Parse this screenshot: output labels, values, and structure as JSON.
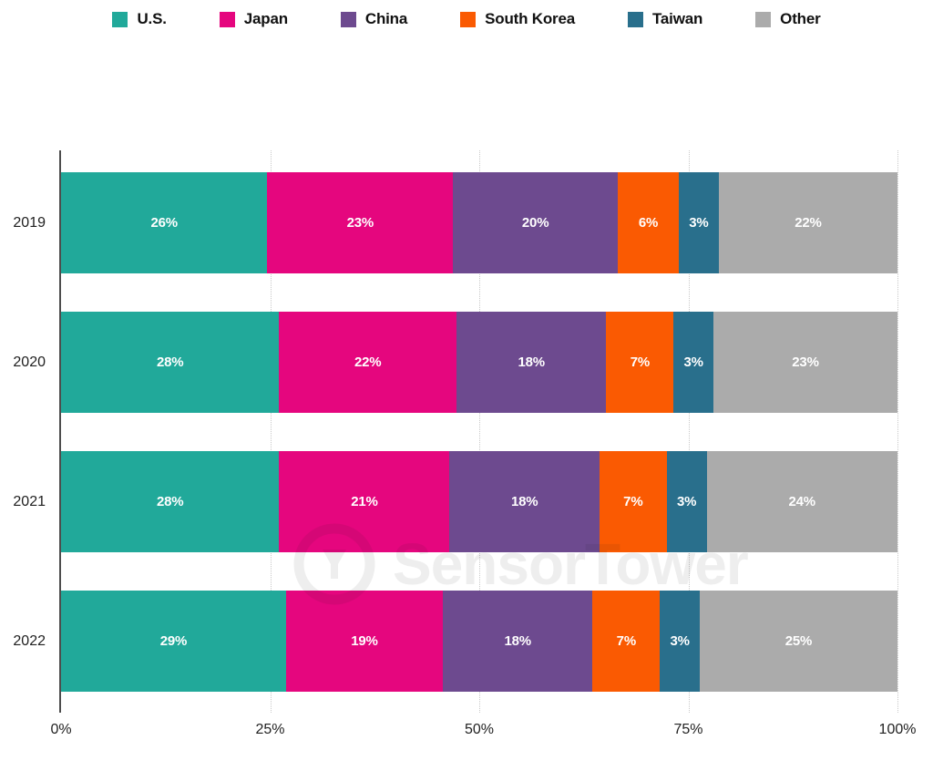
{
  "chart_data": {
    "type": "bar",
    "orientation": "horizontal-stacked",
    "title": "",
    "categories": [
      "2019",
      "2020",
      "2021",
      "2022"
    ],
    "series": [
      {
        "name": "U.S.",
        "color": "#21a99a",
        "values": [
          26,
          28,
          28,
          29
        ]
      },
      {
        "name": "Japan",
        "color": "#e5067e",
        "values": [
          23,
          22,
          21,
          19
        ]
      },
      {
        "name": "China",
        "color": "#6d4a8f",
        "values": [
          20,
          18,
          18,
          18
        ]
      },
      {
        "name": "South Korea",
        "color": "#fa5a02",
        "values": [
          6,
          7,
          7,
          7
        ]
      },
      {
        "name": "Taiwan",
        "color": "#296f8c",
        "values": [
          3,
          3,
          3,
          3
        ]
      },
      {
        "name": "Other",
        "color": "#ababab",
        "values": [
          22,
          23,
          24,
          25
        ]
      }
    ],
    "value_label_suffix": "%",
    "x_ticks": [
      {
        "label": "0%",
        "pos": 0
      },
      {
        "label": "25%",
        "pos": 25
      },
      {
        "label": "50%",
        "pos": 50
      },
      {
        "label": "75%",
        "pos": 75
      },
      {
        "label": "100%",
        "pos": 100
      }
    ],
    "gridline_positions": [
      25,
      50,
      75,
      100
    ],
    "xlim": [
      0,
      100
    ],
    "grid": "dotted-vertical",
    "legend_position": "top",
    "watermark": "SensorTower",
    "colors": {
      "axis_line": "#4d4d4d",
      "gridline": "#c9c9c9",
      "bar_label": "#ffffff",
      "background": "#ffffff"
    }
  }
}
